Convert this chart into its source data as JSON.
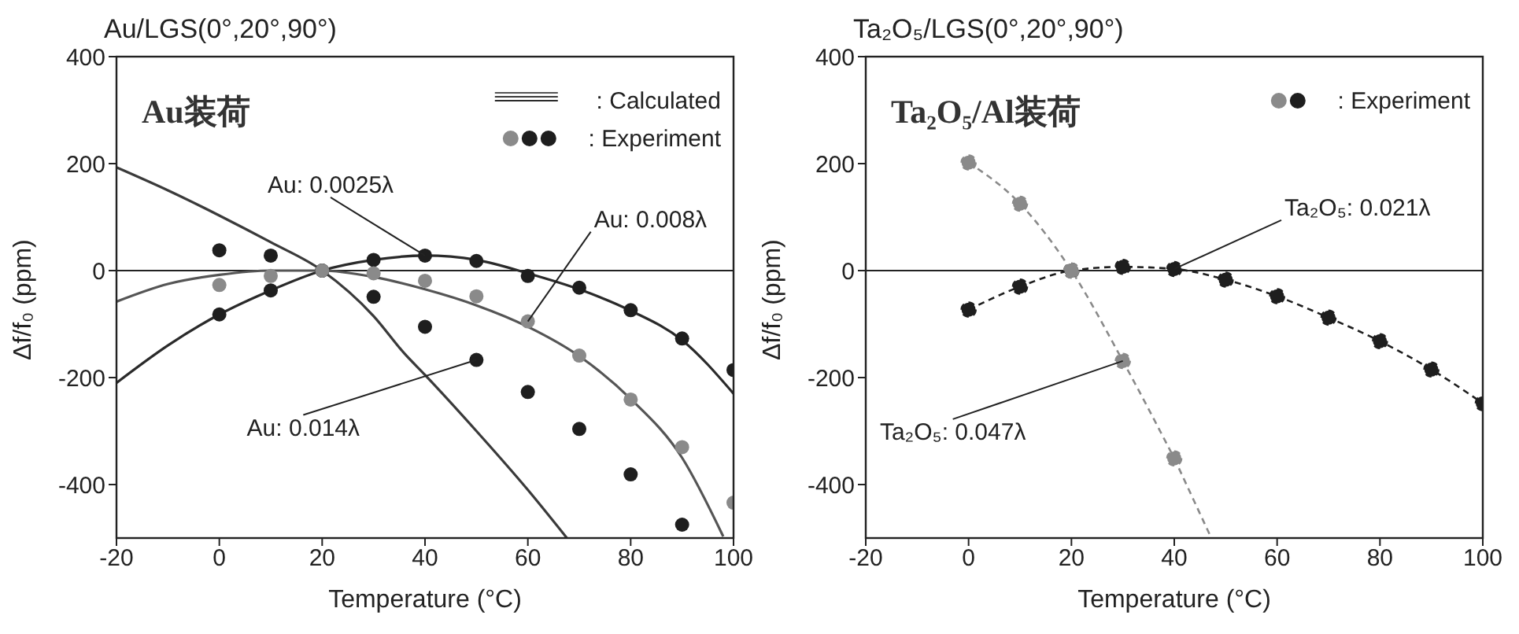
{
  "chart_data": [
    {
      "type": "scatter",
      "title": "Au/LGS(0°,20°,90°)",
      "xlabel": "Temperature (°C)",
      "ylabel": "Δf/f₀ (ppm)",
      "xlim": [
        -20,
        100
      ],
      "ylim": [
        -500,
        400
      ],
      "xticks": [
        -20,
        0,
        20,
        40,
        60,
        80,
        100
      ],
      "yticks": [
        -400,
        -200,
        0,
        200,
        400
      ],
      "grid": false,
      "legend": "top right",
      "marker": "circle",
      "ref_lines": [
        {
          "axis": "y",
          "value": 0
        }
      ],
      "annotations": [
        "Au装荷",
        {
          "text": "Au: 0.0025λ",
          "x": 40,
          "y": 28
        },
        {
          "text": "Au: 0.008λ",
          "x": 60,
          "y": -95
        },
        {
          "text": "Au: 0.014λ",
          "x": 50,
          "y": -167
        }
      ],
      "series": [
        {
          "name": ": Calculated",
          "type": "line",
          "marker": "none",
          "color": "#2a2a2a",
          "x": [
            -20,
            -10,
            0,
            10,
            20,
            30,
            40,
            50,
            60,
            70,
            80,
            90,
            100
          ],
          "values": [
            -210,
            -140,
            -82,
            -37,
            0,
            20,
            28,
            20,
            -5,
            -35,
            -75,
            -130,
            -230
          ]
        },
        {
          "type": "line",
          "marker": "none",
          "color": "#3a3a3a",
          "x": [
            -20,
            -10,
            0,
            10,
            20,
            30,
            36,
            40,
            50,
            60,
            67.6
          ],
          "values": [
            193,
            150,
            103,
            53,
            0,
            -85,
            -155,
            -195,
            -300,
            -410,
            -500
          ]
        },
        {
          "type": "line",
          "marker": "none",
          "color": "#555555",
          "x": [
            -20,
            -10,
            0,
            10,
            20,
            30,
            40,
            50,
            60,
            70,
            80,
            90,
            98
          ],
          "values": [
            -58,
            -25,
            -8,
            0,
            0,
            -12,
            -35,
            -65,
            -105,
            -160,
            -240,
            -350,
            -497
          ]
        },
        {
          "name": ": Experiment",
          "color": "#1e1e1e",
          "x": [
            0,
            10,
            20,
            30,
            40,
            50,
            60,
            70,
            80,
            90,
            100
          ],
          "values": [
            -82,
            -37,
            0,
            20,
            28,
            18,
            -10,
            -32,
            -74,
            -127,
            -186
          ]
        },
        {
          "color": "#1e1e1e",
          "x": [
            0,
            10,
            20,
            30,
            40,
            50,
            60,
            70,
            80,
            90
          ],
          "values": [
            38,
            28,
            0,
            -49,
            -105,
            -167,
            -227,
            -296,
            -381,
            -475
          ]
        },
        {
          "color": "#8a8a8a",
          "x": [
            0,
            10,
            20,
            30,
            40,
            50,
            60,
            70,
            80,
            90,
            100
          ],
          "values": [
            -27,
            -10,
            0,
            -5,
            -19,
            -48,
            -95,
            -159,
            -241,
            -330,
            -434
          ]
        }
      ]
    },
    {
      "type": "line",
      "title": "Ta₂O₅/LGS(0°,20°,90°)",
      "xlabel": "Temperature (°C)",
      "ylabel": "Δf/f₀ (ppm)",
      "xlim": [
        -20,
        100
      ],
      "ylim": [
        -500,
        400
      ],
      "xticks": [
        -20,
        0,
        20,
        40,
        60,
        80,
        100
      ],
      "yticks": [
        -400,
        -200,
        0,
        200,
        400
      ],
      "grid": false,
      "legend": "top right",
      "marker": "circle",
      "line_style": "dashed",
      "ref_lines": [
        {
          "axis": "y",
          "value": 0
        }
      ],
      "annotations": [
        "Ta₂O₅/Al装荷",
        {
          "text": "Ta₂O₅: 0.021λ",
          "x": 40,
          "y": 3
        },
        {
          "text": "Ta₂O₅: 0.047λ",
          "x": 30,
          "y": -169
        }
      ],
      "series": [
        {
          "name": ": Experiment",
          "color": "#1e1e1e",
          "x": [
            0,
            10,
            20,
            30,
            40,
            50,
            60,
            70,
            80,
            90,
            100
          ],
          "values": [
            -73,
            -30,
            0,
            7,
            3,
            -17,
            -48,
            -88,
            -132,
            -185,
            -248
          ]
        },
        {
          "color": "#8a8a8a",
          "x": [
            0,
            10,
            20,
            30,
            40
          ],
          "values": [
            202,
            125,
            0,
            -169,
            -351
          ]
        },
        {
          "marker": "none",
          "color": "#8a8a8a",
          "x": [
            40,
            47.2
          ],
          "values": [
            -351,
            -500
          ]
        }
      ]
    }
  ]
}
